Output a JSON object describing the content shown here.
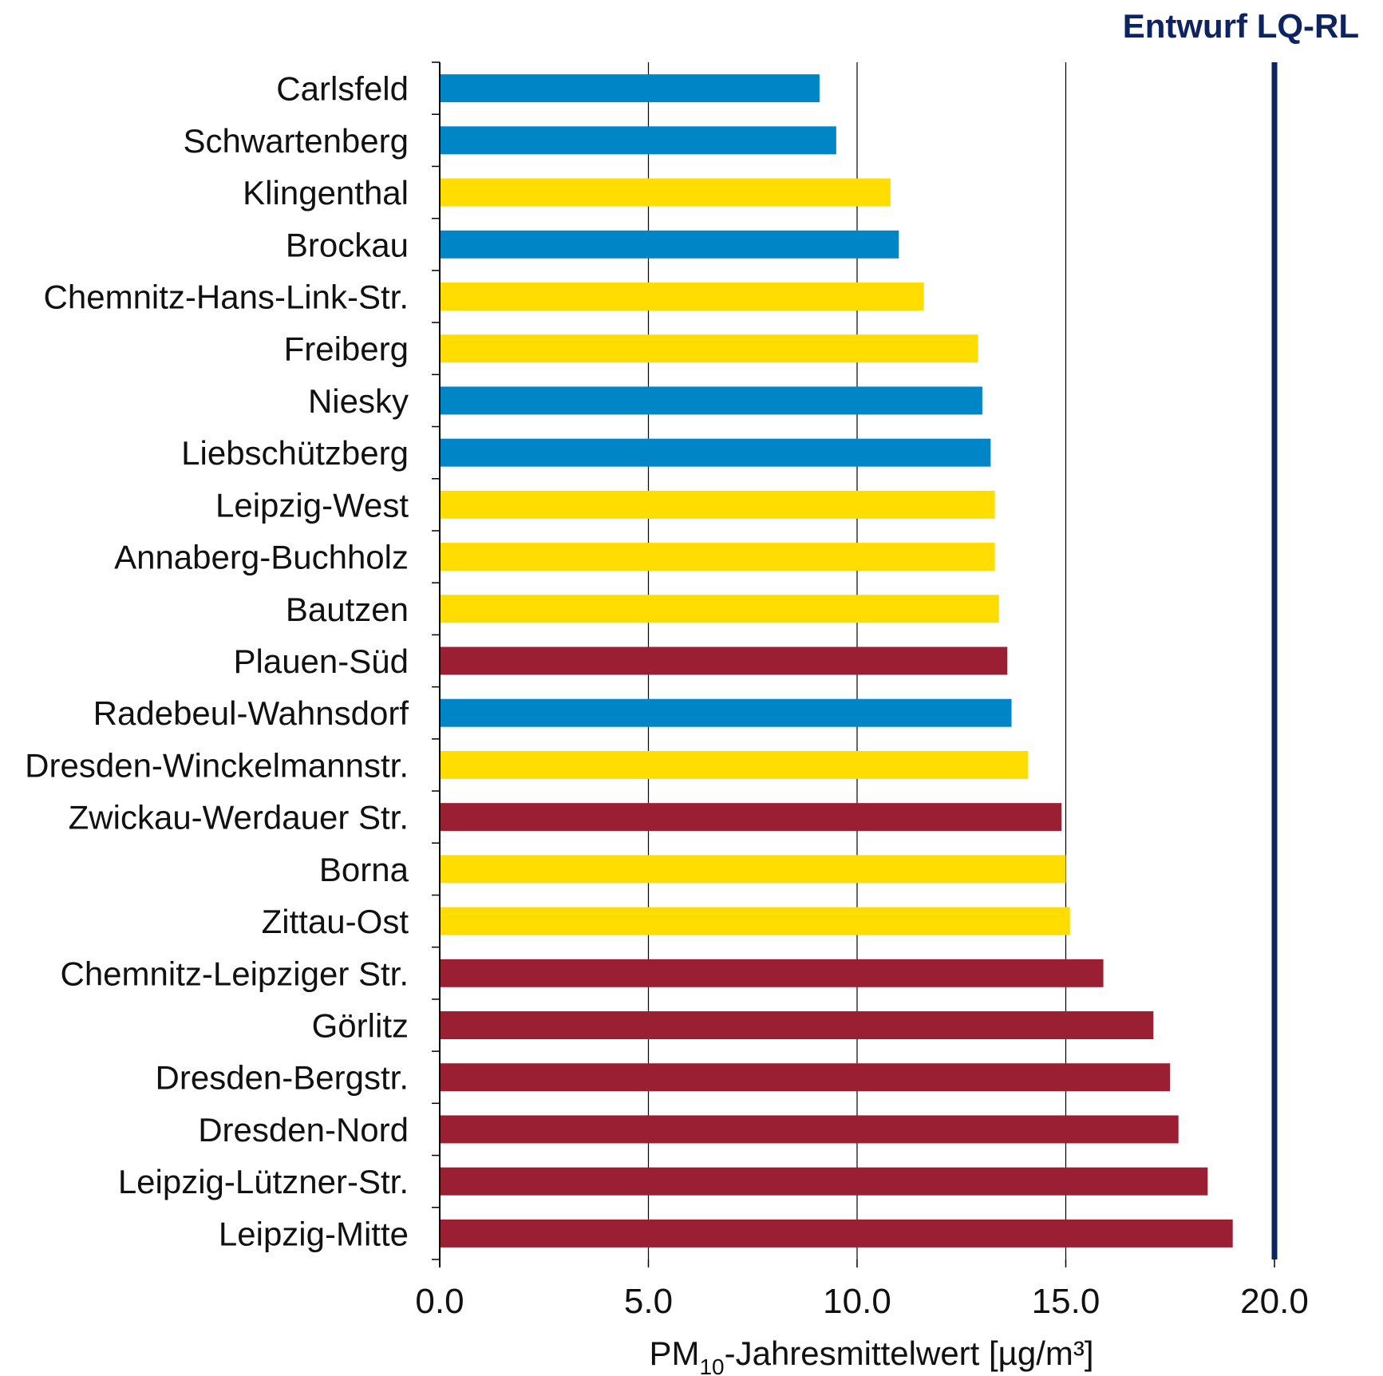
{
  "badge": "Entwurf LQ-RL",
  "colors": {
    "blue": "#0085C7",
    "yellow": "#FFDD00",
    "red": "#9B1F33",
    "limit": "#0D2461",
    "badge": "#0D2461"
  },
  "chart_data": {
    "type": "bar",
    "orientation": "horizontal",
    "categories": [
      "Carlsfeld",
      "Schwartenberg",
      "Klingenthal",
      "Brockau",
      "Chemnitz-Hans-Link-Str.",
      "Freiberg",
      "Niesky",
      "Liebschützberg",
      "Leipzig-West",
      "Annaberg-Buchholz",
      "Bautzen",
      "Plauen-Süd",
      "Radebeul-Wahnsdorf",
      "Dresden-Winckelmannstr.",
      "Zwickau-Werdauer Str.",
      "Borna",
      "Zittau-Ost",
      "Chemnitz-Leipziger Str.",
      "Görlitz",
      "Dresden-Bergstr.",
      "Dresden-Nord",
      "Leipzig-Lützner-Str.",
      "Leipzig-Mitte"
    ],
    "values": [
      9.1,
      9.5,
      10.8,
      11.0,
      11.6,
      12.9,
      13.0,
      13.2,
      13.3,
      13.3,
      13.4,
      13.6,
      13.7,
      14.1,
      14.9,
      15.0,
      15.1,
      15.9,
      17.1,
      17.5,
      17.7,
      18.4,
      19.0
    ],
    "bar_colors": [
      "blue",
      "blue",
      "yellow",
      "blue",
      "yellow",
      "yellow",
      "blue",
      "blue",
      "yellow",
      "yellow",
      "yellow",
      "red",
      "blue",
      "yellow",
      "red",
      "yellow",
      "yellow",
      "red",
      "red",
      "red",
      "red",
      "red",
      "red"
    ],
    "xlim": [
      0,
      20
    ],
    "xticks": [
      "0.0",
      "5.0",
      "10.0",
      "15.0",
      "20.0"
    ],
    "xlabel_main": "PM",
    "xlabel_sub": "10",
    "xlabel_rest": "-Jahresmittelwert [µg/m³]",
    "limit_value": 20,
    "grid": "vertical"
  }
}
